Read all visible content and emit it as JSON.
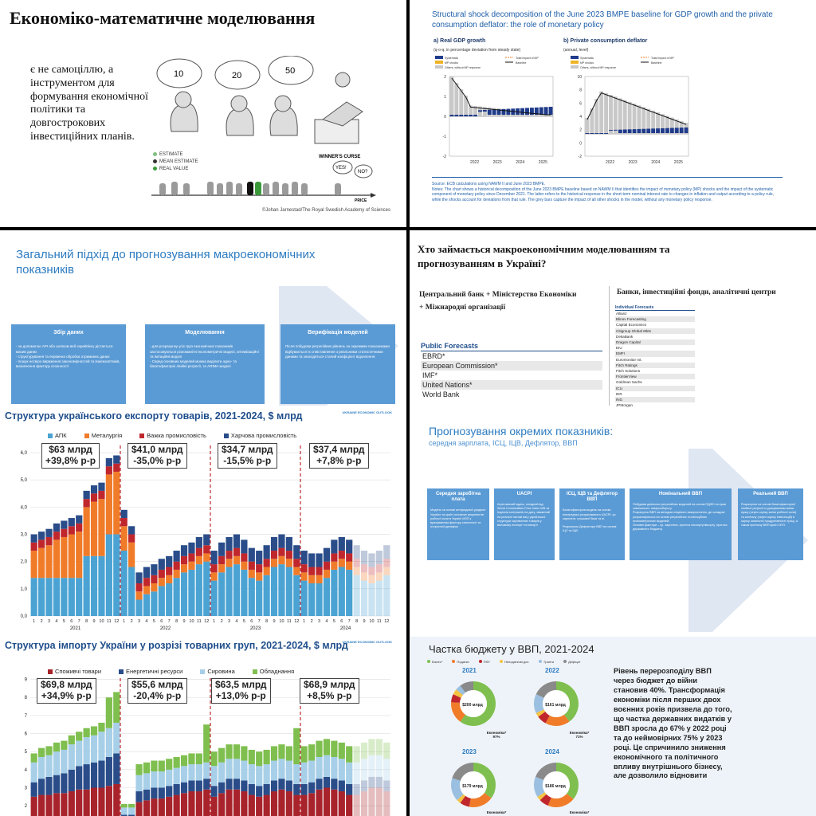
{
  "slide1": {
    "title": "Економіко-математичне моделювання",
    "lead": "є не самоціллю, а інструментом для формування економічної політики та довгострокових інвестиційних планів.",
    "bubbles": [
      "10",
      "20",
      "50"
    ],
    "legend": [
      "ESTIMATE",
      "MEAN ESTIMATE",
      "REAL VALUE"
    ],
    "legend_colors": [
      "#7fbf7f",
      "#333333",
      "#3a9a3a"
    ],
    "winners_curse": "WINNER'S CURSE",
    "yes": "YES!",
    "no": "NO?",
    "price": "PRICE",
    "credit": "©Johan Jarnestad/The Royal Swedish Academy of Sciences"
  },
  "slide2": {
    "title": "Structural shock decomposition of the June 2023 BMPE baseline for GDP growth and the private consumption deflator: the role of monetary policy",
    "panel_a": "a) Real GDP growth",
    "panel_a_sub": "(q-o-q, in percentage deviation from steady state)",
    "panel_b": "b) Private consumption deflator",
    "panel_b_sub": "(annual, level)",
    "legend": [
      "Systematic",
      "MP shocks",
      "Others, without MP response",
      "Total impact of MP",
      "Baseline"
    ],
    "years": [
      "2022",
      "2023",
      "2024",
      "2025"
    ],
    "a_ticks": [
      "2",
      "1",
      "0",
      "-1",
      "-2"
    ],
    "b_ticks": [
      "10",
      "8",
      "6",
      "4",
      "2",
      "0",
      "-2"
    ],
    "source": "Source: ECB calculations using NAWM II and June 2023 BMPE.",
    "notes": "Notes: The chart shows a historical decomposition of the June 2023 BMPE baseline based on NAWM II that identifies the impact of monetary policy (MP) shocks and the impact of the systematic component of monetary policy since December 2021. The latter refers to the historical response in the short-term nominal interest rate to changes in inflation and output according to a policy rule, while the shocks account for deviations from that rule. The grey bars capture the impact of all other shocks in the model, without any monetary policy response."
  },
  "slide3": {
    "title": "Загальний підхід до прогнозування макроекономічних показників",
    "boxes": [
      {
        "head": "Збір даних",
        "body": "- за допомогою API або шляхом веб-скрейпінгу дістається масив даних\n- структурування та первинна обробка отриманих даних\n- пошук нєсвіро вираження закономірностей та взаємозв'язків, визначення фактору сезонності"
      },
      {
        "head": "Моделювання",
        "body": "- для розрахунку усіх груп економічних показників застосовуються різноманітні економетричні моделі, оптимізаційні та імітаційні моделі\n- Серед основних моделей можна виділити одно- та багатофакторні лінійні регресії, та ARIMA моделі"
      },
      {
        "head": "Верифікація моделей",
        "body": "Після побудови регресійних рівнянь за окремими показниками відбувається їх співставлення з реальними статистичними даними та знаходяться сталий коефіцієнт відхилення."
      }
    ]
  },
  "slide4": {
    "title": "Хто займається макроекономічним моделюванням та прогнозуванням в Україні?",
    "left_head_1": "Центральний банк + Міністерство Економіки",
    "left_head_2": "+ Міжнародні організації",
    "right_head": "Банки, інвестиційні фонди, аналітичні центри",
    "public_head": "Public Forecasts",
    "public": [
      "EBRD*",
      "European Commission*",
      "IMF*",
      "United Nations*",
      "World Bank"
    ],
    "individual_head": "Individual Forecasts",
    "individual": [
      "Allianz",
      "Blinov Forecasting",
      "Capital Economics",
      "Citigroup Global Mkts",
      "DekaBank",
      "Dragon Capital",
      "EIU",
      "EMFI",
      "Euromonitor Int.",
      "Fitch Ratings",
      "Fitch Solutions",
      "FrontierView",
      "Goldman Sachs",
      "ICU",
      "IER",
      "ING",
      "JPMorgan"
    ]
  },
  "slide5": {
    "brand": "UKRAINE ECONOMIC OUTLOOK",
    "colors": {
      "agro": "#4ba3d3",
      "metal": "#f07c2a",
      "heavy": "#c0272d",
      "food": "#2a4d8a"
    },
    "key_boxes": [
      {
        "line1": "$63 млрд",
        "line2": "+39,8% р-р"
      },
      {
        "line1": "$41,0 млрд",
        "line2": "-35,0% р-р"
      },
      {
        "line1": "$34,7 млрд",
        "line2": "-15,5% р-р"
      },
      {
        "line1": "$37,4 млрд",
        "line2": "+7,8% р-р"
      }
    ],
    "year_labels": [
      "2021",
      "2022",
      "2023",
      "2024"
    ],
    "month_labels": [
      "1",
      "2",
      "3",
      "4",
      "5",
      "6",
      "7",
      "8",
      "9",
      "10",
      "11",
      "12"
    ],
    "y_ticks": [
      "6,0",
      "5,0",
      "4,0",
      "3,0",
      "2,0",
      "1,0",
      "0,0"
    ]
  },
  "slide6": {
    "title": "Прогнозування окремих показників:",
    "subtitle": "середня зарплата, ІСЦ, ІЦВ, Дефлятор, ВВП",
    "boxes": [
      {
        "head": "Середня заробітна плата",
        "body": "Модель на основі антирядової уряднон України та країн основних реципієнтів робочої сили в Україні МЗП з врахуванням фактору сезонності та історичної динаміки"
      },
      {
        "head": "UACPI",
        "body": "Агрегований індекс, похідний від World Commodities Price Index WB та Індексів контрактів на дату, зважений на реальні питомі вагу української структури сировинних товарів у валовому експорті та імпорті"
      },
      {
        "head": "ІСЦ, ІЦВ та Дефлятор ВВП",
        "body": "Багатофакторна модель на основі попередньо розрахованого UACPI, ср. зарплати, грошової бази та ін.\n\nРозрахунок Дефлятора ВВП на основі ІЦС та ІЦВ"
      },
      {
        "head": "Номінальний ВВП",
        "body": "Побудова декількох регресійних моделей на основі ПДФО та суми зовнішнього товарообороту.\nРозрахунок ВВП за методом кінцевого використання, де складові розраховуються на основі регресійних та імітаційних економетричних моделей.\nОсновні фактори – ср. зарплата, прогноз експорту/імпорту, прогноз державного бюджету."
      },
      {
        "head": "Реальний ВВП",
        "body": "Розрахунок на основі багатофакторної лінійної регресії із урахуванням зміни праці (через оцінку зміни робочої сили) та капіталу (через оцінку інвестицій) в оцінку загальної продуктивності праці, а також прогнозу ВВП країн ОПЛ."
      }
    ]
  },
  "slide7": {
    "brand": "UKRAINE ECONOMIC OUTLOOK",
    "colors": {
      "consumer": "#a8232b",
      "energy": "#2a4d8a",
      "raw": "#a7cfe8",
      "equipment": "#7fbf4f"
    },
    "key_boxes": [
      {
        "line1": "$69,8 млрд",
        "line2": "+34,9% р-р"
      },
      {
        "line1": "$55,6 млрд",
        "line2": "-20,4% р-р"
      },
      {
        "line1": "$63,5 млрд",
        "line2": "+13,0% р-р"
      },
      {
        "line1": "$68,9 млрд",
        "line2": "+8,5% р-р"
      }
    ],
    "y_ticks": [
      "9",
      "8",
      "7",
      "6",
      "5",
      "4",
      "3",
      "2"
    ]
  },
  "slide8": {
    "title": "Частка бюджету у ВВП, 2021-2024",
    "legend": [
      "Бізнес*",
      "Податки",
      "ПФУ",
      "Неподаткові дох.",
      "Гранти",
      "Дефіцит"
    ],
    "legend_colors": [
      "#7fbf4f",
      "#f07c2a",
      "#c0272d",
      "#f5c342",
      "#9bbfe0",
      "#8a8a8a"
    ],
    "text": "Рівень перерозподілу ВВП через бюджет до війни становив 40%. Трансформація економіки після перших двох воєнних років призвела до того, що частка державних видатків у ВВП зросла до 67% у 2022 році та до неймовірних 75% у 2023 році. Це спричинило зниження економічного та політичного впливу внутрішнього бізнесу, але дозволило відновити",
    "years": [
      "2021",
      "2022",
      "2023",
      "2024"
    ],
    "centers": [
      "$200 млрд",
      "$161 млрд",
      "$179 млрд",
      "$186 млрд"
    ],
    "eco": [
      "Економіка* 97%",
      "Економіка* 71%",
      "Економіка*",
      "Економіка*"
    ]
  }
}
